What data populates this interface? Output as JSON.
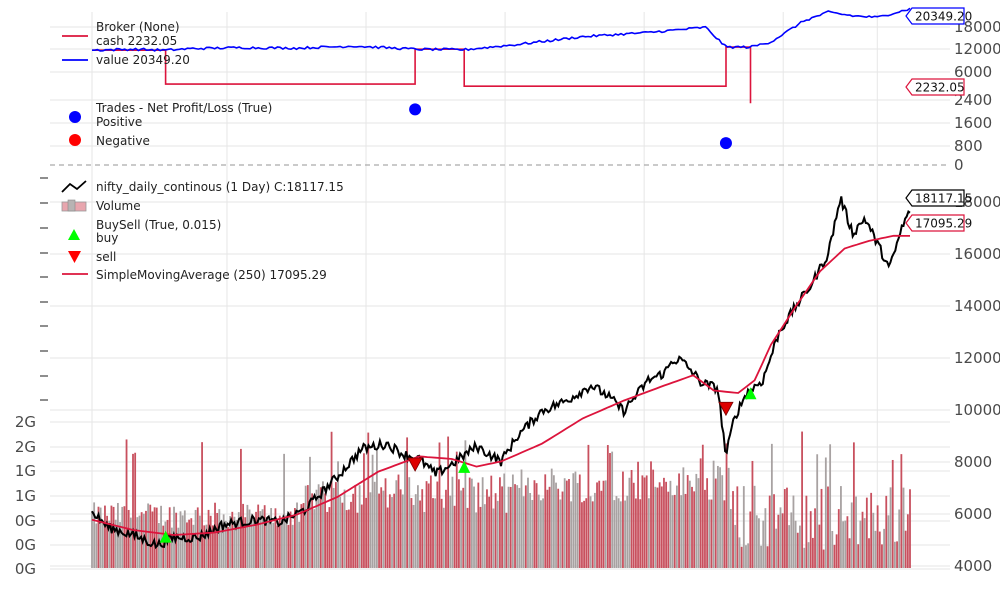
{
  "chart_data": [
    {
      "panel": "broker",
      "type": "line",
      "legend": [
        {
          "label": "Broker (None)"
        },
        {
          "label": "cash 2232.05",
          "color": "#dc143c"
        },
        {
          "label": "value 20349.20",
          "color": "#0000ff"
        }
      ],
      "yticks": [
        "18000",
        "12000",
        "6000"
      ],
      "ylim": [
        4000,
        20500
      ],
      "series": [
        {
          "name": "cash",
          "color": "#dc143c",
          "points": [
            [
              0,
              12400
            ],
            [
              0.09,
              12400
            ],
            [
              0.09,
              5900
            ],
            [
              0.395,
              5900
            ],
            [
              0.395,
              12600
            ],
            [
              0.455,
              12600
            ],
            [
              0.455,
              5500
            ],
            [
              0.775,
              5500
            ],
            [
              0.775,
              13000
            ],
            [
              0.805,
              13000
            ],
            [
              0.805,
              2232
            ]
          ]
        },
        {
          "name": "value",
          "color": "#0000ff",
          "points": [
            [
              0,
              12400
            ],
            [
              0.05,
              12600
            ],
            [
              0.09,
              12400
            ],
            [
              0.12,
              12700
            ],
            [
              0.18,
              12900
            ],
            [
              0.25,
              12800
            ],
            [
              0.32,
              13200
            ],
            [
              0.395,
              12600
            ],
            [
              0.455,
              12500
            ],
            [
              0.52,
              13500
            ],
            [
              0.6,
              15000
            ],
            [
              0.68,
              15800
            ],
            [
              0.75,
              16800
            ],
            [
              0.775,
              13000
            ],
            [
              0.805,
              13000
            ],
            [
              0.83,
              14000
            ],
            [
              0.87,
              18000
            ],
            [
              0.9,
              19700
            ],
            [
              0.93,
              19000
            ],
            [
              0.96,
              18700
            ],
            [
              1.0,
              20349
            ]
          ]
        }
      ],
      "last_values": [
        {
          "label": "20349.20",
          "color": "#0000ff"
        },
        {
          "label": "2232.05",
          "color": "#dc143c"
        }
      ]
    },
    {
      "panel": "trades",
      "type": "scatter",
      "legend": [
        {
          "label": "Trades - Net Profit/Loss (True)"
        },
        {
          "label": "Positive",
          "color": "#0000ff"
        },
        {
          "label": "Negative",
          "color": "#ff0000"
        }
      ],
      "yticks": [
        "2400",
        "1600",
        "800",
        "0"
      ],
      "ylim": [
        0,
        3000
      ],
      "points": [
        {
          "x": 0.395,
          "y": 2400,
          "color": "#0000ff"
        },
        {
          "x": 0.775,
          "y": 890,
          "color": "#0000ff"
        }
      ]
    },
    {
      "panel": "price",
      "type": "line",
      "legend": [
        {
          "label": "nifty_daily_continous (1 Day) C:18117.15",
          "color": "#000000"
        },
        {
          "label": "Volume",
          "color": "#e8a6ae"
        },
        {
          "label": "BuySell (True, 0.015)"
        },
        {
          "label": "buy",
          "color": "#00ff00"
        },
        {
          "label": "sell",
          "color": "#ff0000"
        },
        {
          "label": "SimpleMovingAverage (250) 17095.29",
          "color": "#dc143c"
        }
      ],
      "yticks_right": [
        "18000",
        "16000",
        "14000",
        "12000",
        "10000",
        "8000",
        "6000",
        "4000"
      ],
      "yticks_left": [
        "2G",
        "2G",
        "1G",
        "1G",
        "0G",
        "0G",
        "0G"
      ],
      "ylim": [
        4000,
        19300
      ],
      "volume_ylim": [
        0,
        2.1
      ],
      "series": [
        {
          "name": "close",
          "color": "#000000",
          "points": [
            [
              0,
              6200
            ],
            [
              0.02,
              5600
            ],
            [
              0.05,
              5300
            ],
            [
              0.08,
              4900
            ],
            [
              0.1,
              5200
            ],
            [
              0.13,
              5200
            ],
            [
              0.16,
              5700
            ],
            [
              0.2,
              5900
            ],
            [
              0.23,
              5800
            ],
            [
              0.26,
              6300
            ],
            [
              0.3,
              7600
            ],
            [
              0.33,
              8700
            ],
            [
              0.36,
              8900
            ],
            [
              0.38,
              8500
            ],
            [
              0.4,
              8300
            ],
            [
              0.42,
              7700
            ],
            [
              0.44,
              8100
            ],
            [
              0.47,
              8800
            ],
            [
              0.5,
              8200
            ],
            [
              0.52,
              9200
            ],
            [
              0.55,
              10200
            ],
            [
              0.58,
              10600
            ],
            [
              0.61,
              11200
            ],
            [
              0.63,
              10800
            ],
            [
              0.65,
              10200
            ],
            [
              0.68,
              11400
            ],
            [
              0.7,
              11700
            ],
            [
              0.71,
              12200
            ],
            [
              0.72,
              12200
            ],
            [
              0.735,
              11700
            ],
            [
              0.745,
              11300
            ],
            [
              0.765,
              11100
            ],
            [
              0.775,
              8400
            ],
            [
              0.785,
              9900
            ],
            [
              0.8,
              10900
            ],
            [
              0.82,
              11400
            ],
            [
              0.84,
              13300
            ],
            [
              0.86,
              14300
            ],
            [
              0.88,
              15200
            ],
            [
              0.9,
              16400
            ],
            [
              0.915,
              18600
            ],
            [
              0.93,
              17200
            ],
            [
              0.945,
              17800
            ],
            [
              0.96,
              16800
            ],
            [
              0.975,
              15800
            ],
            [
              0.99,
              17400
            ],
            [
              1.0,
              18117
            ]
          ]
        },
        {
          "name": "sma250",
          "color": "#dc143c",
          "points": [
            [
              0,
              5900
            ],
            [
              0.05,
              5500
            ],
            [
              0.1,
              5300
            ],
            [
              0.15,
              5400
            ],
            [
              0.2,
              5700
            ],
            [
              0.25,
              6100
            ],
            [
              0.3,
              6800
            ],
            [
              0.35,
              7800
            ],
            [
              0.4,
              8400
            ],
            [
              0.44,
              8300
            ],
            [
              0.47,
              8000
            ],
            [
              0.5,
              8200
            ],
            [
              0.55,
              8900
            ],
            [
              0.6,
              9900
            ],
            [
              0.65,
              10600
            ],
            [
              0.7,
              11200
            ],
            [
              0.735,
              11600
            ],
            [
              0.76,
              11000
            ],
            [
              0.79,
              10900
            ],
            [
              0.81,
              11400
            ],
            [
              0.83,
              12800
            ],
            [
              0.86,
              14300
            ],
            [
              0.89,
              15700
            ],
            [
              0.92,
              16600
            ],
            [
              0.95,
              16900
            ],
            [
              0.98,
              17100
            ],
            [
              1.0,
              17095
            ]
          ]
        }
      ],
      "buy_markers": [
        {
          "x": 0.09,
          "y": 5200
        },
        {
          "x": 0.455,
          "y": 7950
        },
        {
          "x": 0.805,
          "y": 10850
        }
      ],
      "sell_markers": [
        {
          "x": 0.395,
          "y": 8100
        },
        {
          "x": 0.775,
          "y": 10300
        }
      ],
      "last_values": [
        {
          "label": "18117.15",
          "color": "#000000"
        },
        {
          "label": "17095.29",
          "color": "#dc143c"
        }
      ]
    }
  ]
}
